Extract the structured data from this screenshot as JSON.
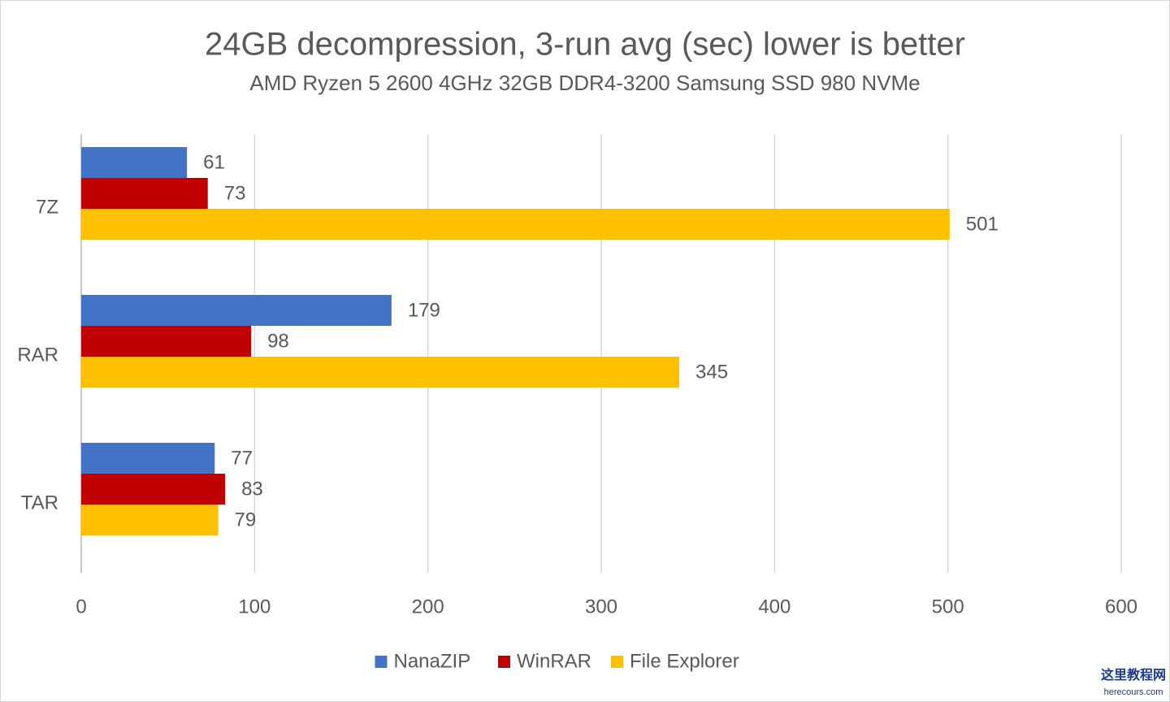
{
  "chart_data": {
    "type": "bar",
    "orientation": "horizontal",
    "title": "24GB decompression, 3-run avg (sec) lower is better",
    "subtitle": "AMD Ryzen 5 2600 4GHz 32GB DDR4-3200 Samsung SSD 980 NVMe",
    "categories": [
      "7Z",
      "RAR",
      "TAR"
    ],
    "series": [
      {
        "name": "NanaZIP",
        "color": "#4472c4",
        "values": [
          61,
          179,
          77
        ]
      },
      {
        "name": "WinRAR",
        "color": "#c00000",
        "values": [
          73,
          98,
          83
        ]
      },
      {
        "name": "File Explorer",
        "color": "#ffc000",
        "values": [
          501,
          345,
          79
        ]
      }
    ],
    "xlim": [
      0,
      600
    ],
    "xticks": [
      0,
      100,
      200,
      300,
      400,
      500,
      600
    ],
    "grid": true,
    "legend": "bottom",
    "watermark": [
      "这里教程网",
      "herecours.com"
    ]
  }
}
